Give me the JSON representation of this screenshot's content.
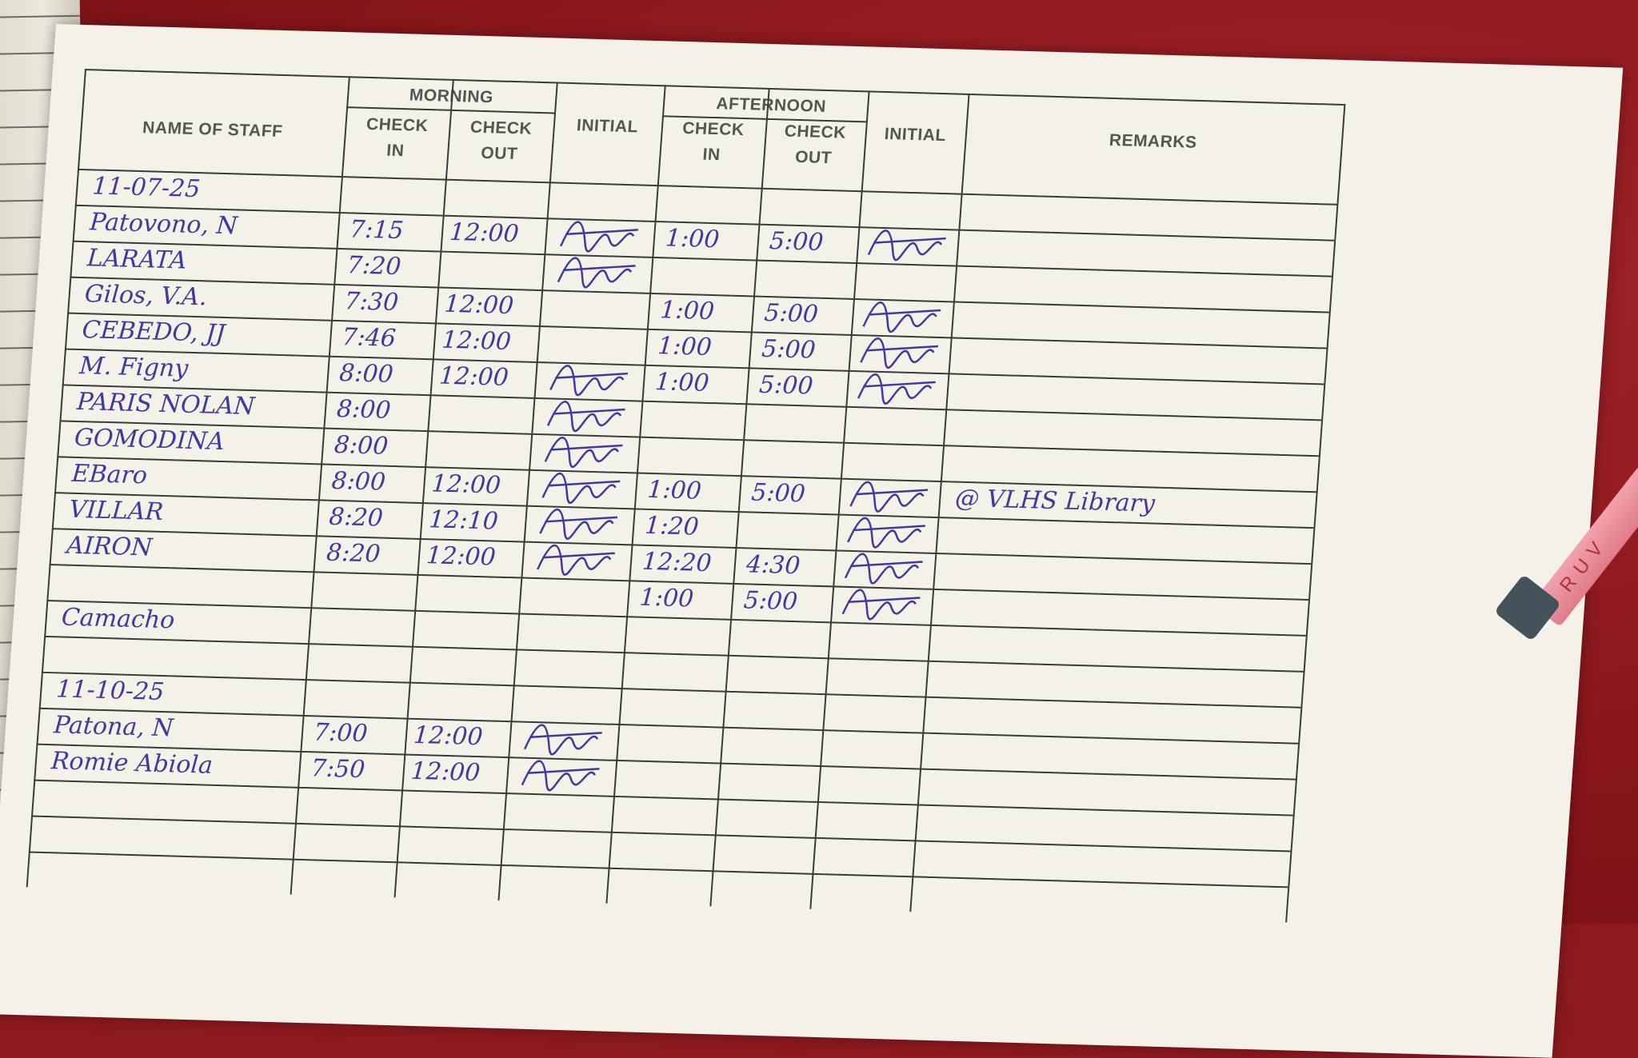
{
  "colors": {
    "ink": "#3d3b9c",
    "paper": "#f4f2e8",
    "table_surface": "#8e1a1e",
    "header_text": "#555555"
  },
  "headers": {
    "name": "NAME OF STAFF",
    "morning": "MORNING",
    "afternoon": "AFTERNOON",
    "check": "CHECK",
    "in": "IN",
    "out": "OUT",
    "initial": "INITIAL",
    "remarks": "REMARKS"
  },
  "rows": [
    {
      "name": "11-07-25",
      "m_in": "",
      "m_out": "",
      "m_init": false,
      "a_in": "",
      "a_out": "",
      "a_init": false,
      "remarks": ""
    },
    {
      "name": "Patovono, N",
      "m_in": "7:15",
      "m_out": "12:00",
      "m_init": true,
      "a_in": "1:00",
      "a_out": "5:00",
      "a_init": true,
      "remarks": ""
    },
    {
      "name": "LARATA",
      "m_in": "7:20",
      "m_out": "",
      "m_init": true,
      "a_in": "",
      "a_out": "",
      "a_init": false,
      "remarks": ""
    },
    {
      "name": "Gilos, V.A.",
      "m_in": "7:30",
      "m_out": "12:00",
      "m_init": false,
      "a_in": "1:00",
      "a_out": "5:00",
      "a_init": true,
      "remarks": ""
    },
    {
      "name": "CEBEDO, JJ",
      "m_in": "7:46",
      "m_out": "12:00",
      "m_init": false,
      "a_in": "1:00",
      "a_out": "5:00",
      "a_init": true,
      "remarks": ""
    },
    {
      "name": "M. Figny",
      "m_in": "8:00",
      "m_out": "12:00",
      "m_init": true,
      "a_in": "1:00",
      "a_out": "5:00",
      "a_init": true,
      "remarks": ""
    },
    {
      "name": "PARIS NOLAN",
      "m_in": "8:00",
      "m_out": "",
      "m_init": true,
      "a_in": "",
      "a_out": "",
      "a_init": false,
      "remarks": ""
    },
    {
      "name": "GOMODINA",
      "m_in": "8:00",
      "m_out": "",
      "m_init": true,
      "a_in": "",
      "a_out": "",
      "a_init": false,
      "remarks": ""
    },
    {
      "name": "EBaro",
      "m_in": "8:00",
      "m_out": "12:00",
      "m_init": true,
      "a_in": "1:00",
      "a_out": "5:00",
      "a_init": true,
      "remarks": "@ VLHS Library"
    },
    {
      "name": "VILLAR",
      "m_in": "8:20",
      "m_out": "12:10",
      "m_init": true,
      "a_in": "1:20",
      "a_out": "",
      "a_init": true,
      "remarks": ""
    },
    {
      "name": "AIRON",
      "m_in": "8:20",
      "m_out": "12:00",
      "m_init": true,
      "a_in": "12:20",
      "a_out": "4:30",
      "a_init": true,
      "remarks": ""
    },
    {
      "name": "",
      "m_in": "",
      "m_out": "",
      "m_init": false,
      "a_in": "1:00",
      "a_out": "5:00",
      "a_init": true,
      "remarks": ""
    },
    {
      "name": "Camacho",
      "m_in": "",
      "m_out": "",
      "m_init": false,
      "a_in": "",
      "a_out": "",
      "a_init": false,
      "remarks": ""
    },
    {
      "name": "",
      "m_in": "",
      "m_out": "",
      "m_init": false,
      "a_in": "",
      "a_out": "",
      "a_init": false,
      "remarks": ""
    },
    {
      "name": "11-10-25",
      "m_in": "",
      "m_out": "",
      "m_init": false,
      "a_in": "",
      "a_out": "",
      "a_init": false,
      "remarks": ""
    },
    {
      "name": "Patona, N",
      "m_in": "7:00",
      "m_out": "12:00",
      "m_init": true,
      "a_in": "",
      "a_out": "",
      "a_init": false,
      "remarks": ""
    },
    {
      "name": "Romie Abiola",
      "m_in": "7:50",
      "m_out": "12:00",
      "m_init": true,
      "a_in": "",
      "a_out": "",
      "a_init": false,
      "remarks": ""
    },
    {
      "name": "",
      "m_in": "",
      "m_out": "",
      "m_init": false,
      "a_in": "",
      "a_out": "",
      "a_init": false,
      "remarks": ""
    },
    {
      "name": "",
      "m_in": "",
      "m_out": "",
      "m_init": false,
      "a_in": "",
      "a_out": "",
      "a_init": false,
      "remarks": ""
    },
    {
      "name": "",
      "m_in": "",
      "m_out": "",
      "m_init": false,
      "a_in": "",
      "a_out": "",
      "a_init": false,
      "remarks": ""
    }
  ],
  "pen_label": "RUV"
}
